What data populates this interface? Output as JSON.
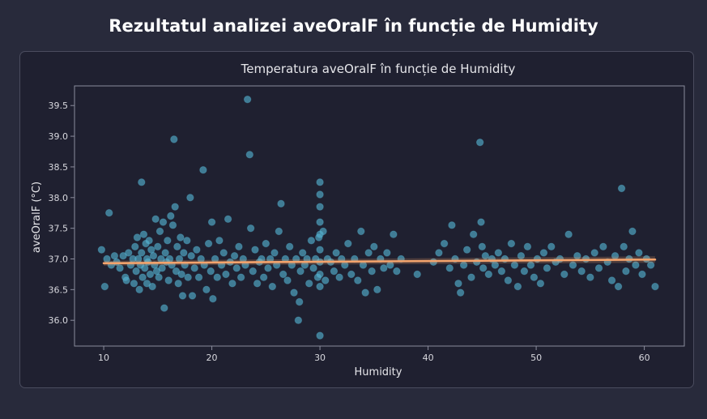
{
  "page": {
    "title": "Rezultatul analizei aveOralF în funcție de Humidity"
  },
  "colors": {
    "background": "#282a3b",
    "card": "#1f2030",
    "points": "#56b4d3",
    "trend": "#f4a36c"
  },
  "chart_data": {
    "type": "scatter",
    "title": "Temperatura aveOralF în funcție de Humidity",
    "xlabel": "Humidity",
    "ylabel": "aveOralF (°C)",
    "xlim": [
      7.3,
      63.7
    ],
    "ylim": [
      35.58,
      39.82
    ],
    "xticks": [
      10,
      20,
      30,
      40,
      50,
      60
    ],
    "yticks": [
      36.0,
      36.5,
      37.0,
      37.5,
      38.0,
      38.5,
      39.0,
      39.5
    ],
    "grid": false,
    "trend_line": {
      "x": [
        10,
        61
      ],
      "y": [
        36.93,
        36.99
      ]
    },
    "points": [
      [
        9.8,
        37.15
      ],
      [
        10.1,
        36.55
      ],
      [
        10.3,
        37.0
      ],
      [
        10.5,
        37.75
      ],
      [
        10.7,
        36.9
      ],
      [
        11.0,
        37.05
      ],
      [
        11.2,
        36.95
      ],
      [
        11.5,
        36.85
      ],
      [
        11.8,
        37.05
      ],
      [
        12.0,
        36.7
      ],
      [
        12.1,
        36.65
      ],
      [
        12.3,
        37.1
      ],
      [
        12.5,
        36.9
      ],
      [
        12.7,
        37.0
      ],
      [
        12.8,
        36.6
      ],
      [
        12.9,
        37.2
      ],
      [
        13.0,
        36.8
      ],
      [
        13.1,
        37.35
      ],
      [
        13.2,
        37.0
      ],
      [
        13.3,
        36.5
      ],
      [
        13.4,
        36.9
      ],
      [
        13.5,
        38.25
      ],
      [
        13.5,
        37.1
      ],
      [
        13.6,
        36.7
      ],
      [
        13.7,
        37.4
      ],
      [
        13.8,
        36.85
      ],
      [
        13.9,
        37.25
      ],
      [
        14.0,
        37.0
      ],
      [
        14.0,
        36.6
      ],
      [
        14.1,
        36.95
      ],
      [
        14.2,
        37.3
      ],
      [
        14.3,
        36.75
      ],
      [
        14.4,
        37.15
      ],
      [
        14.5,
        36.55
      ],
      [
        14.6,
        37.05
      ],
      [
        14.7,
        36.9
      ],
      [
        14.8,
        37.65
      ],
      [
        14.9,
        36.8
      ],
      [
        15.0,
        37.2
      ],
      [
        15.1,
        36.7
      ],
      [
        15.2,
        37.45
      ],
      [
        15.3,
        37.0
      ],
      [
        15.4,
        36.85
      ],
      [
        15.5,
        37.6
      ],
      [
        15.6,
        36.2
      ],
      [
        15.7,
        37.1
      ],
      [
        15.8,
        36.95
      ],
      [
        15.9,
        37.3
      ],
      [
        16.0,
        36.65
      ],
      [
        16.1,
        37.0
      ],
      [
        16.2,
        37.7
      ],
      [
        16.3,
        36.9
      ],
      [
        16.4,
        37.55
      ],
      [
        16.5,
        38.95
      ],
      [
        16.6,
        37.85
      ],
      [
        16.7,
        36.8
      ],
      [
        16.8,
        37.2
      ],
      [
        16.9,
        36.6
      ],
      [
        17.0,
        37.0
      ],
      [
        17.1,
        37.35
      ],
      [
        17.2,
        36.75
      ],
      [
        17.3,
        36.4
      ],
      [
        17.4,
        37.1
      ],
      [
        17.5,
        36.9
      ],
      [
        17.7,
        37.3
      ],
      [
        17.8,
        36.7
      ],
      [
        18.0,
        38.0
      ],
      [
        18.1,
        37.05
      ],
      [
        18.2,
        36.4
      ],
      [
        18.4,
        36.85
      ],
      [
        18.6,
        37.15
      ],
      [
        18.8,
        36.7
      ],
      [
        19.0,
        37.0
      ],
      [
        19.2,
        38.45
      ],
      [
        19.3,
        36.9
      ],
      [
        19.5,
        36.5
      ],
      [
        19.7,
        37.25
      ],
      [
        19.9,
        36.8
      ],
      [
        20.0,
        37.6
      ],
      [
        20.1,
        36.35
      ],
      [
        20.3,
        37.0
      ],
      [
        20.5,
        36.7
      ],
      [
        20.7,
        37.3
      ],
      [
        20.9,
        36.9
      ],
      [
        21.1,
        37.1
      ],
      [
        21.3,
        36.75
      ],
      [
        21.5,
        37.65
      ],
      [
        21.7,
        36.95
      ],
      [
        21.9,
        36.6
      ],
      [
        22.1,
        37.05
      ],
      [
        22.3,
        36.85
      ],
      [
        22.5,
        37.2
      ],
      [
        22.7,
        36.7
      ],
      [
        22.9,
        37.0
      ],
      [
        23.1,
        36.9
      ],
      [
        23.3,
        39.6
      ],
      [
        23.5,
        38.7
      ],
      [
        23.6,
        37.5
      ],
      [
        23.8,
        36.8
      ],
      [
        24.0,
        37.15
      ],
      [
        24.2,
        36.6
      ],
      [
        24.4,
        36.95
      ],
      [
        24.6,
        37.0
      ],
      [
        24.8,
        36.7
      ],
      [
        25.0,
        37.25
      ],
      [
        25.2,
        36.85
      ],
      [
        25.4,
        37.0
      ],
      [
        25.6,
        36.55
      ],
      [
        25.8,
        37.1
      ],
      [
        26.0,
        36.9
      ],
      [
        26.2,
        37.45
      ],
      [
        26.4,
        37.9
      ],
      [
        26.6,
        36.75
      ],
      [
        26.8,
        37.0
      ],
      [
        27.0,
        36.65
      ],
      [
        27.2,
        37.2
      ],
      [
        27.4,
        36.9
      ],
      [
        27.6,
        36.45
      ],
      [
        27.8,
        37.0
      ],
      [
        28.0,
        36.0
      ],
      [
        28.1,
        36.3
      ],
      [
        28.2,
        36.8
      ],
      [
        28.4,
        37.1
      ],
      [
        28.6,
        36.9
      ],
      [
        28.8,
        37.0
      ],
      [
        29.0,
        36.6
      ],
      [
        29.2,
        37.3
      ],
      [
        29.4,
        36.85
      ],
      [
        29.6,
        37.0
      ],
      [
        29.8,
        36.7
      ],
      [
        29.9,
        37.35
      ],
      [
        30.0,
        38.25
      ],
      [
        30.0,
        38.05
      ],
      [
        30.0,
        37.85
      ],
      [
        30.0,
        37.6
      ],
      [
        30.0,
        37.4
      ],
      [
        30.0,
        37.15
      ],
      [
        30.0,
        36.95
      ],
      [
        30.0,
        36.75
      ],
      [
        30.0,
        36.55
      ],
      [
        30.0,
        35.75
      ],
      [
        30.3,
        37.45
      ],
      [
        30.5,
        36.65
      ],
      [
        30.7,
        37.0
      ],
      [
        31.0,
        36.95
      ],
      [
        31.3,
        36.8
      ],
      [
        31.5,
        37.1
      ],
      [
        31.8,
        36.7
      ],
      [
        32.0,
        37.0
      ],
      [
        32.3,
        36.9
      ],
      [
        32.6,
        37.25
      ],
      [
        32.9,
        36.75
      ],
      [
        33.2,
        37.0
      ],
      [
        33.5,
        36.65
      ],
      [
        33.8,
        37.45
      ],
      [
        34.0,
        36.9
      ],
      [
        34.2,
        36.45
      ],
      [
        34.5,
        37.1
      ],
      [
        34.8,
        36.8
      ],
      [
        35.0,
        37.2
      ],
      [
        35.3,
        36.5
      ],
      [
        35.6,
        37.0
      ],
      [
        35.9,
        36.85
      ],
      [
        36.2,
        37.1
      ],
      [
        36.5,
        36.9
      ],
      [
        36.8,
        37.4
      ],
      [
        37.1,
        36.8
      ],
      [
        37.5,
        37.0
      ],
      [
        39.0,
        36.75
      ],
      [
        40.5,
        36.95
      ],
      [
        41.0,
        37.1
      ],
      [
        41.5,
        37.25
      ],
      [
        42.0,
        36.85
      ],
      [
        42.2,
        37.55
      ],
      [
        42.5,
        37.0
      ],
      [
        42.8,
        36.6
      ],
      [
        43.0,
        36.45
      ],
      [
        43.3,
        36.9
      ],
      [
        43.6,
        37.15
      ],
      [
        44.0,
        36.7
      ],
      [
        44.2,
        37.4
      ],
      [
        44.5,
        36.95
      ],
      [
        44.8,
        38.9
      ],
      [
        44.9,
        37.6
      ],
      [
        45.0,
        37.2
      ],
      [
        45.1,
        36.85
      ],
      [
        45.3,
        37.05
      ],
      [
        45.6,
        36.75
      ],
      [
        45.9,
        37.0
      ],
      [
        46.2,
        36.9
      ],
      [
        46.5,
        37.1
      ],
      [
        46.8,
        36.8
      ],
      [
        47.1,
        37.0
      ],
      [
        47.4,
        36.65
      ],
      [
        47.7,
        37.25
      ],
      [
        48.0,
        36.9
      ],
      [
        48.3,
        36.55
      ],
      [
        48.6,
        37.05
      ],
      [
        48.9,
        36.8
      ],
      [
        49.2,
        37.2
      ],
      [
        49.5,
        36.9
      ],
      [
        49.8,
        36.7
      ],
      [
        50.1,
        37.0
      ],
      [
        50.4,
        36.6
      ],
      [
        50.7,
        37.1
      ],
      [
        51.0,
        36.85
      ],
      [
        51.4,
        37.2
      ],
      [
        51.8,
        36.95
      ],
      [
        52.2,
        37.0
      ],
      [
        52.6,
        36.75
      ],
      [
        53.0,
        37.4
      ],
      [
        53.4,
        36.9
      ],
      [
        53.8,
        37.05
      ],
      [
        54.2,
        36.8
      ],
      [
        54.6,
        37.0
      ],
      [
        55.0,
        36.7
      ],
      [
        55.4,
        37.1
      ],
      [
        55.8,
        36.85
      ],
      [
        56.2,
        37.2
      ],
      [
        56.6,
        36.95
      ],
      [
        57.0,
        36.65
      ],
      [
        57.3,
        37.05
      ],
      [
        57.6,
        36.55
      ],
      [
        57.9,
        38.15
      ],
      [
        58.1,
        37.2
      ],
      [
        58.3,
        36.8
      ],
      [
        58.6,
        37.0
      ],
      [
        58.9,
        37.45
      ],
      [
        59.2,
        36.9
      ],
      [
        59.5,
        37.1
      ],
      [
        59.8,
        36.75
      ],
      [
        60.2,
        37.0
      ],
      [
        60.6,
        36.9
      ],
      [
        61.0,
        36.55
      ]
    ]
  }
}
